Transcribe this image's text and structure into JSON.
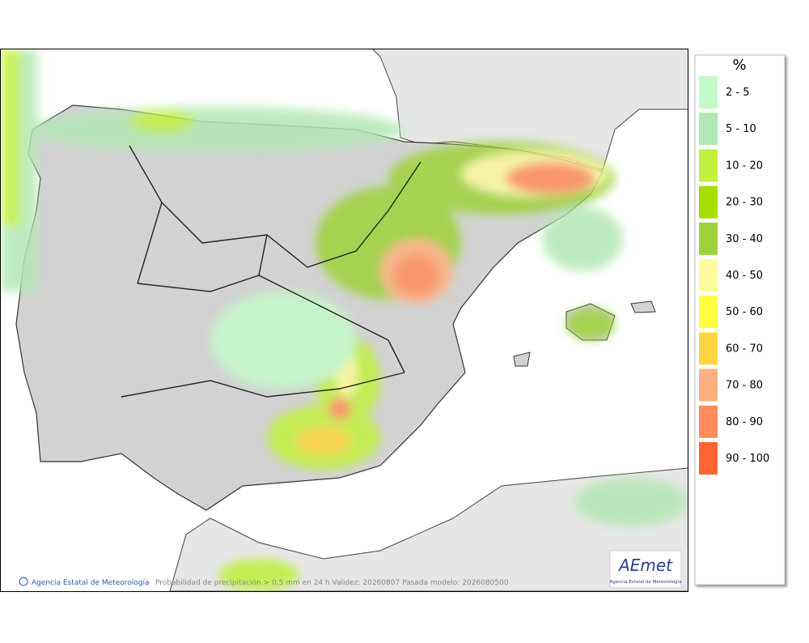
{
  "map": {
    "legend": {
      "title": "%",
      "items": [
        {
          "label": "2 - 5",
          "color": "#c2fbc8"
        },
        {
          "label": "5 - 10",
          "color": "#b2e8b4"
        },
        {
          "label": "10 - 20",
          "color": "#c0f03c"
        },
        {
          "label": "20 - 30",
          "color": "#a6de00"
        },
        {
          "label": "30 - 40",
          "color": "#9ed23a"
        },
        {
          "label": "40 - 50",
          "color": "#fdfb9c"
        },
        {
          "label": "50 - 60",
          "color": "#fefd40"
        },
        {
          "label": "60 - 70",
          "color": "#ffd640"
        },
        {
          "label": "70 - 80",
          "color": "#ffb080"
        },
        {
          "label": "80 - 90",
          "color": "#ff8c5c"
        },
        {
          "label": "90 - 100",
          "color": "#ff6434"
        }
      ]
    },
    "credit": "Agencia Estatal de Meteorología",
    "caption": "Probabilidad de precipitación > 0.5 mm en 24 h Validez: 20260807 Pasada modelo: 2026080500",
    "logo": {
      "name": "AEmet",
      "subtitle": "Agencia Estatal de Meteorología"
    }
  }
}
